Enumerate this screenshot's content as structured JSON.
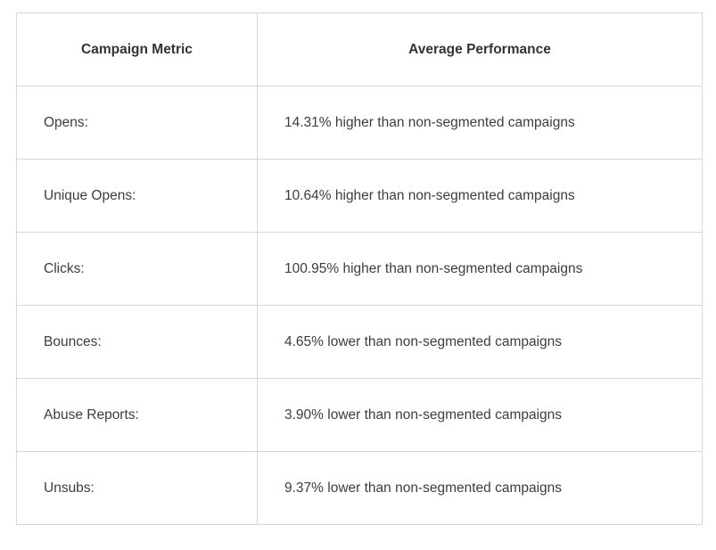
{
  "table": {
    "headers": [
      "Campaign Metric",
      "Average Performance"
    ],
    "rows": [
      {
        "metric": "Opens:",
        "performance": "14.31% higher than non-segmented campaigns"
      },
      {
        "metric": "Unique Opens:",
        "performance": "10.64% higher than non-segmented campaigns"
      },
      {
        "metric": "Clicks:",
        "performance": "100.95% higher than non-segmented campaigns"
      },
      {
        "metric": "Bounces:",
        "performance": "4.65% lower than non-segmented campaigns"
      },
      {
        "metric": "Abuse Reports:",
        "performance": "3.90% lower than non-segmented campaigns"
      },
      {
        "metric": "Unsubs:",
        "performance": "9.37% lower than non-segmented campaigns"
      }
    ]
  }
}
